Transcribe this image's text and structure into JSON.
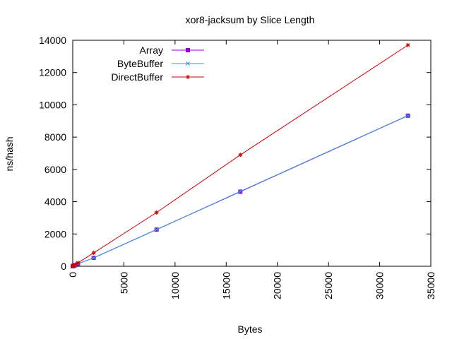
{
  "chart_data": {
    "type": "line",
    "title": "xor8-jacksum by Slice Length",
    "xlabel": "Bytes",
    "ylabel": "ns/hash",
    "xlim": [
      0,
      35000
    ],
    "ylim": [
      0,
      14000
    ],
    "xticks": [
      0,
      5000,
      10000,
      15000,
      20000,
      25000,
      30000,
      35000
    ],
    "yticks": [
      0,
      2000,
      4000,
      6000,
      8000,
      10000,
      12000,
      14000
    ],
    "grid": false,
    "legend_position": "top-left",
    "series": [
      {
        "name": "Array",
        "color": "#9400d3",
        "marker": "filled-square",
        "x": [
          1,
          2,
          4,
          8,
          16,
          32,
          64,
          128,
          256,
          512,
          2048,
          8192,
          16384,
          32768
        ],
        "y": [
          6,
          9,
          10,
          12,
          14,
          18,
          24,
          35,
          62,
          150,
          520,
          2270,
          4620,
          9330
        ]
      },
      {
        "name": "ByteBuffer",
        "color": "#3399dd",
        "marker": "x",
        "x": [
          1,
          2,
          4,
          8,
          16,
          32,
          64,
          128,
          256,
          512,
          2048,
          8192,
          16384,
          32768
        ],
        "y": [
          6,
          9,
          10,
          12,
          14,
          18,
          24,
          35,
          62,
          150,
          525,
          2275,
          4640,
          9340
        ]
      },
      {
        "name": "DirectBuffer",
        "color": "#cc0000",
        "marker": "star",
        "x": [
          1,
          2,
          4,
          8,
          16,
          32,
          64,
          128,
          256,
          512,
          2048,
          8192,
          16384,
          32768
        ],
        "y": [
          8,
          10,
          12,
          15,
          18,
          25,
          35,
          55,
          100,
          210,
          830,
          3330,
          6900,
          13700
        ]
      }
    ]
  }
}
